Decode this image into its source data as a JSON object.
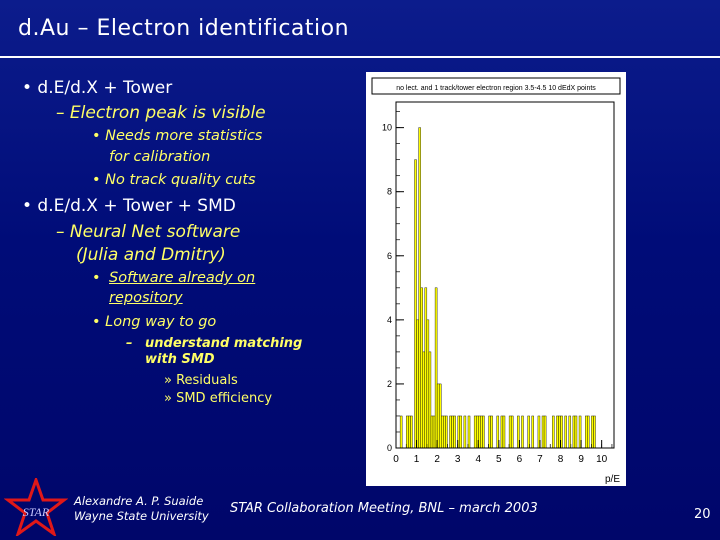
{
  "slide": {
    "title": "d.Au – Electron identification",
    "page_number": "20"
  },
  "bullets": {
    "b1": "• d.E/d.X + Tower",
    "b1_sub": "– Electron peak is visible",
    "b1_sub_a": "• Needs more statistics",
    "b1_sub_a2": "for calibration",
    "b1_sub_b": "• No track quality cuts",
    "b2": "• d.E/d.X + Tower + SMD",
    "b2_sub": "– Neural Net software",
    "b2_sub2": "(Julia and Dmitry)",
    "b2_sub_a_bullet": "•",
    "b2_sub_a": "Software already on",
    "b2_sub_a2": "repository",
    "b2_sub_b": "• Long way to go",
    "b2_sub_b_dash": "–",
    "b2_sub_b_1": "understand matching",
    "b2_sub_b_1b": "with SMD",
    "b2_sub_b_r1": "» Residuals",
    "b2_sub_b_r2": "» SMD efficiency"
  },
  "footer": {
    "author": "Alexandre A. P. Suaide",
    "institution": "Wayne State University",
    "meeting": "STAR Collaboration Meeting, BNL – march 2003",
    "logo_text": "STAR"
  },
  "colors": {
    "background": "#000c78",
    "bullet_yellow": "#ffff66",
    "histogram_fill": "#ffff00"
  },
  "chart_data": {
    "type": "bar",
    "title": "no lect. and 1 track/tower electron region 3.5-4.5 10 dEdX points",
    "xlabel": "p/E",
    "ylabel": "",
    "xlim": [
      0,
      10.6
    ],
    "ylim": [
      0,
      10.8
    ],
    "xticks": [
      "0",
      "1",
      "2",
      "3",
      "4",
      "5",
      "6",
      "7",
      "8",
      "9",
      "10"
    ],
    "yticks": [
      "0",
      "2",
      "4",
      "6",
      "8",
      "10"
    ],
    "bin_width": 0.1,
    "x": [
      0.1,
      0.2,
      0.3,
      0.4,
      0.5,
      0.6,
      0.7,
      0.8,
      0.9,
      1.0,
      1.1,
      1.2,
      1.3,
      1.4,
      1.5,
      1.6,
      1.7,
      1.8,
      1.9,
      2.0,
      2.1,
      2.2,
      2.3,
      2.4,
      2.5,
      2.6,
      2.7,
      2.8,
      2.9,
      3.0,
      3.1,
      3.2,
      3.3,
      3.4,
      3.5,
      3.6,
      3.7,
      3.8,
      3.9,
      4.0,
      4.1,
      4.2,
      4.3,
      4.4,
      4.5,
      4.6,
      4.7,
      4.8,
      4.9,
      5.0,
      5.1,
      5.2,
      5.3,
      5.4,
      5.5,
      5.6,
      5.7,
      5.8,
      5.9,
      6.0,
      6.1,
      6.2,
      6.3,
      6.4,
      6.5,
      6.6,
      6.7,
      6.8,
      6.9,
      7.0,
      7.1,
      7.2,
      7.3,
      7.4,
      7.5,
      7.6,
      7.7,
      7.8,
      7.9,
      8.0,
      8.1,
      8.2,
      8.3,
      8.4,
      8.5,
      8.6,
      8.7,
      8.8,
      8.9,
      9.0,
      9.1,
      9.2,
      9.3,
      9.4,
      9.5,
      9.6,
      9.7,
      9.8,
      9.9,
      10.0
    ],
    "values": [
      0,
      0,
      1,
      0,
      0,
      1,
      1,
      1,
      0,
      9,
      4,
      10,
      5,
      3,
      5,
      4,
      3,
      1,
      1,
      5,
      2,
      2,
      1,
      1,
      1,
      0,
      1,
      1,
      1,
      0,
      1,
      1,
      0,
      1,
      0,
      1,
      0,
      0,
      1,
      1,
      1,
      1,
      1,
      0,
      0,
      1,
      1,
      0,
      0,
      1,
      0,
      1,
      1,
      0,
      0,
      1,
      1,
      0,
      0,
      1,
      0,
      1,
      0,
      0,
      1,
      0,
      1,
      0,
      0,
      1,
      0,
      1,
      1,
      0,
      0,
      0,
      1,
      0,
      1,
      1,
      1,
      0,
      1,
      0,
      1,
      0,
      1,
      1,
      0,
      1,
      0,
      0,
      1,
      1,
      0,
      1,
      1,
      0,
      0,
      0
    ]
  }
}
